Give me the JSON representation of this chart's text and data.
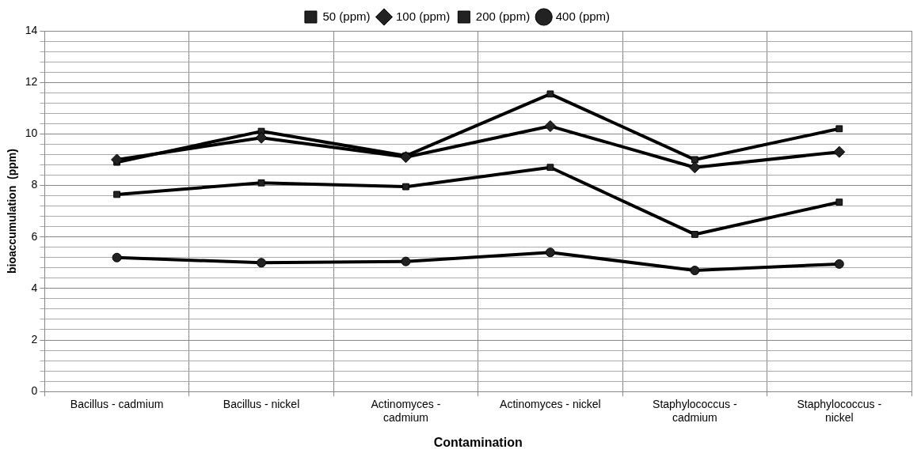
{
  "chart_data": {
    "type": "line",
    "xlabel": "Contamination",
    "ylabel": "bioaccumulation  (ppm)",
    "categories": [
      "Bacillus - cadmium",
      "Bacillus - nickel",
      "Actinomyces - cadmium",
      "Actinomyces - nickel",
      "Staphylococcus - cadmium",
      "Staphylococcus - nickel"
    ],
    "series": [
      {
        "name": "50 (ppm)",
        "color": "#000000",
        "marker": "square",
        "values": [
          8.9,
          10.1,
          9.15,
          11.55,
          9.0,
          10.2
        ]
      },
      {
        "name": "100 (ppm)",
        "color": "#000000",
        "marker": "diamond",
        "values": [
          9.0,
          9.85,
          9.1,
          10.3,
          8.7,
          9.3
        ]
      },
      {
        "name": "200 (ppm)",
        "color": "#000000",
        "marker": "square",
        "values": [
          7.65,
          8.1,
          7.95,
          8.7,
          6.1,
          7.35
        ]
      },
      {
        "name": "400 (ppm)",
        "color": "#000000",
        "marker": "circle",
        "values": [
          5.2,
          5.0,
          5.05,
          5.4,
          4.7,
          4.95
        ]
      }
    ],
    "ylim": [
      0,
      14
    ],
    "yticks": [
      0,
      {
        "value": 0.4,
        "label": null
      },
      {
        "value": 0.8,
        "label": null
      },
      {
        "value": 1.2,
        "label": null
      },
      {
        "value": 1.6,
        "label": null
      },
      2,
      {
        "value": 2.4,
        "label": null
      },
      {
        "value": 2.8,
        "label": null
      },
      {
        "value": 3.2,
        "label": null
      },
      {
        "value": 3.6,
        "label": null
      },
      4,
      {
        "value": 4.4,
        "label": null
      },
      {
        "value": 4.8,
        "label": null
      },
      {
        "value": 5.2,
        "label": null
      },
      {
        "value": 5.6,
        "label": null
      },
      6,
      {
        "value": 6.4,
        "label": null
      },
      {
        "value": 6.8,
        "label": null
      },
      {
        "value": 7.2,
        "label": null
      },
      {
        "value": 7.6,
        "label": null
      },
      8,
      {
        "value": 8.4,
        "label": null
      },
      {
        "value": 8.8,
        "label": null
      },
      {
        "value": 9.2,
        "label": null
      },
      {
        "value": 9.6,
        "label": null
      },
      10,
      {
        "value": 10.4,
        "label": null
      },
      {
        "value": 10.8,
        "label": null
      },
      {
        "value": 11.2,
        "label": null
      },
      {
        "value": 11.6,
        "label": null
      },
      12,
      {
        "value": 12.4,
        "label": null
      },
      {
        "value": 12.8,
        "label": null
      },
      {
        "value": 13.2,
        "label": null
      },
      {
        "value": 13.6,
        "label": null
      },
      14
    ],
    "grid": true,
    "legend": "top",
    "line_style": "solid"
  }
}
